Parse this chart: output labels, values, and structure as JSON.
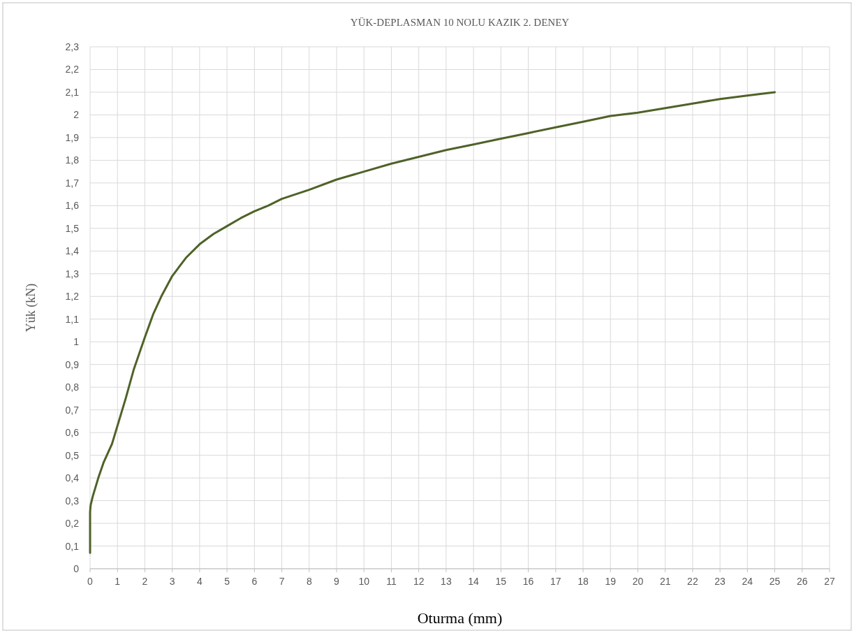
{
  "chart_data": {
    "type": "line",
    "title": "YÜK-DEPLASMAN  10 NOLU KAZIK  2. DENEY",
    "xlabel": "Oturma (mm)",
    "ylabel": "Yük (kN)",
    "series": [
      {
        "color": "#4f6228",
        "x": [
          0,
          0,
          0.02,
          0.1,
          0.3,
          0.5,
          0.8,
          1,
          1.3,
          1.6,
          2,
          2.3,
          2.6,
          3,
          3.5,
          4,
          4.5,
          5,
          5.5,
          6,
          6.5,
          7,
          8,
          9,
          10,
          11,
          12,
          13,
          14,
          15,
          16,
          17,
          18,
          19,
          20,
          21,
          22,
          23,
          24,
          25
        ],
        "values": [
          0.07,
          0.25,
          0.28,
          0.32,
          0.4,
          0.47,
          0.55,
          0.63,
          0.75,
          0.88,
          1.02,
          1.12,
          1.2,
          1.29,
          1.37,
          1.43,
          1.475,
          1.51,
          1.545,
          1.575,
          1.6,
          1.63,
          1.67,
          1.715,
          1.75,
          1.785,
          1.815,
          1.845,
          1.87,
          1.895,
          1.92,
          1.945,
          1.97,
          1.995,
          2.01,
          2.03,
          2.05,
          2.07,
          2.085,
          2.1
        ]
      }
    ],
    "xlim": [
      0,
      27
    ],
    "xticks": [
      0,
      1,
      2,
      3,
      4,
      5,
      6,
      7,
      8,
      9,
      10,
      11,
      12,
      13,
      14,
      15,
      16,
      17,
      18,
      19,
      20,
      21,
      22,
      23,
      24,
      25,
      26,
      27
    ],
    "ylim": [
      0,
      2.3
    ],
    "yticks": [
      0,
      {
        "value": 0.1,
        "label": "0,1"
      },
      {
        "value": 0.2,
        "label": "0,2"
      },
      {
        "value": 0.3,
        "label": "0,3"
      },
      {
        "value": 0.4,
        "label": "0,4"
      },
      {
        "value": 0.5,
        "label": "0,5"
      },
      {
        "value": 0.6,
        "label": "0,6"
      },
      {
        "value": 0.7,
        "label": "0,7"
      },
      {
        "value": 0.8,
        "label": "0,8"
      },
      {
        "value": 0.9,
        "label": "0,9"
      },
      1,
      {
        "value": 1.1,
        "label": "1,1"
      },
      {
        "value": 1.2,
        "label": "1,2"
      },
      {
        "value": 1.3,
        "label": "1,3"
      },
      {
        "value": 1.4,
        "label": "1,4"
      },
      {
        "value": 1.5,
        "label": "1,5"
      },
      {
        "value": 1.6,
        "label": "1,6"
      },
      {
        "value": 1.7,
        "label": "1,7"
      },
      {
        "value": 1.8,
        "label": "1,8"
      },
      {
        "value": 1.9,
        "label": "1,9"
      },
      2,
      {
        "value": 2.1,
        "label": "2,1"
      },
      {
        "value": 2.2,
        "label": "2,2"
      },
      {
        "value": 2.3,
        "label": "2,3"
      }
    ],
    "grid": true,
    "marker": "none",
    "line_style": "solid"
  }
}
